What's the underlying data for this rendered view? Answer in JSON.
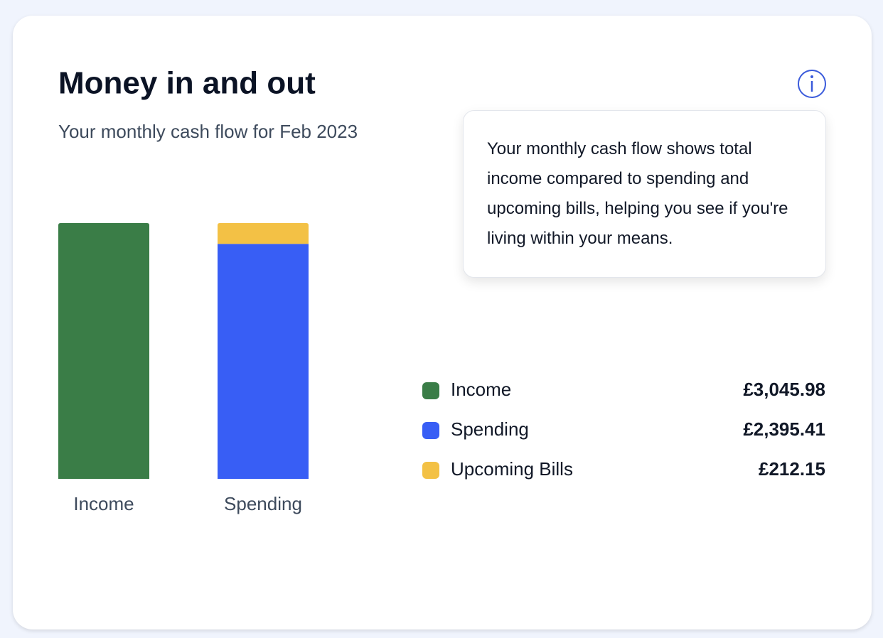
{
  "title": "Money in and out",
  "subtitle": "Your monthly cash flow for Feb 2023",
  "tooltip": "Your monthly cash flow shows total income compared to spending and upcoming bills, helping you see if you're living within your means.",
  "chart_data": {
    "type": "bar",
    "stacked": "percent",
    "categories": [
      "Income",
      "Spending"
    ],
    "series": [
      {
        "name": "Income",
        "color": "#3a7d47",
        "values": [
          3045.98,
          null
        ],
        "value_labels": [
          "£3,045.98",
          null
        ]
      },
      {
        "name": "Spending",
        "color": "#385ef5",
        "values": [
          null,
          2395.41
        ],
        "value_labels": [
          null,
          "£2,395.41"
        ]
      },
      {
        "name": "Upcoming Bills",
        "color": "#f3c145",
        "values": [
          null,
          212.15
        ],
        "value_labels": [
          null,
          "£212.15"
        ]
      }
    ]
  }
}
